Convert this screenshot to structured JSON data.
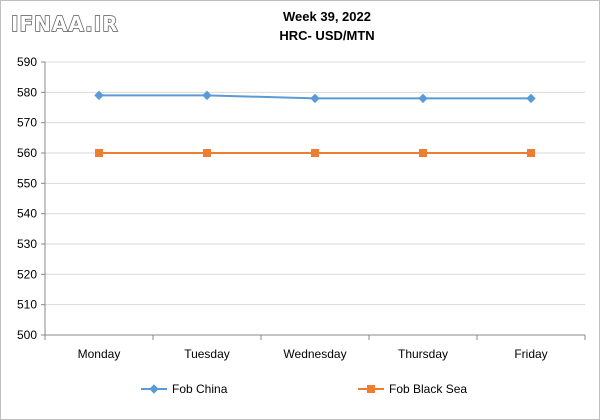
{
  "logo": "IFNAA.IR",
  "chart_data": {
    "type": "line",
    "title": "Week 39, 2022",
    "subtitle": "HRC- USD/MTN",
    "xlabel": "",
    "ylabel": "",
    "categories": [
      "Monday",
      "Tuesday",
      "Wednesday",
      "Thursday",
      "Friday"
    ],
    "ylim": [
      500,
      590
    ],
    "yticks": [
      500,
      510,
      520,
      530,
      540,
      550,
      560,
      570,
      580,
      590
    ],
    "grid": true,
    "legend_position": "bottom",
    "series": [
      {
        "name": "Fob China",
        "color": "#5b9bd5",
        "marker": "diamond",
        "values": [
          579,
          579,
          578,
          578,
          578
        ]
      },
      {
        "name": "Fob Black Sea",
        "color": "#ed7d31",
        "marker": "square",
        "values": [
          560,
          560,
          560,
          560,
          560
        ]
      }
    ]
  }
}
